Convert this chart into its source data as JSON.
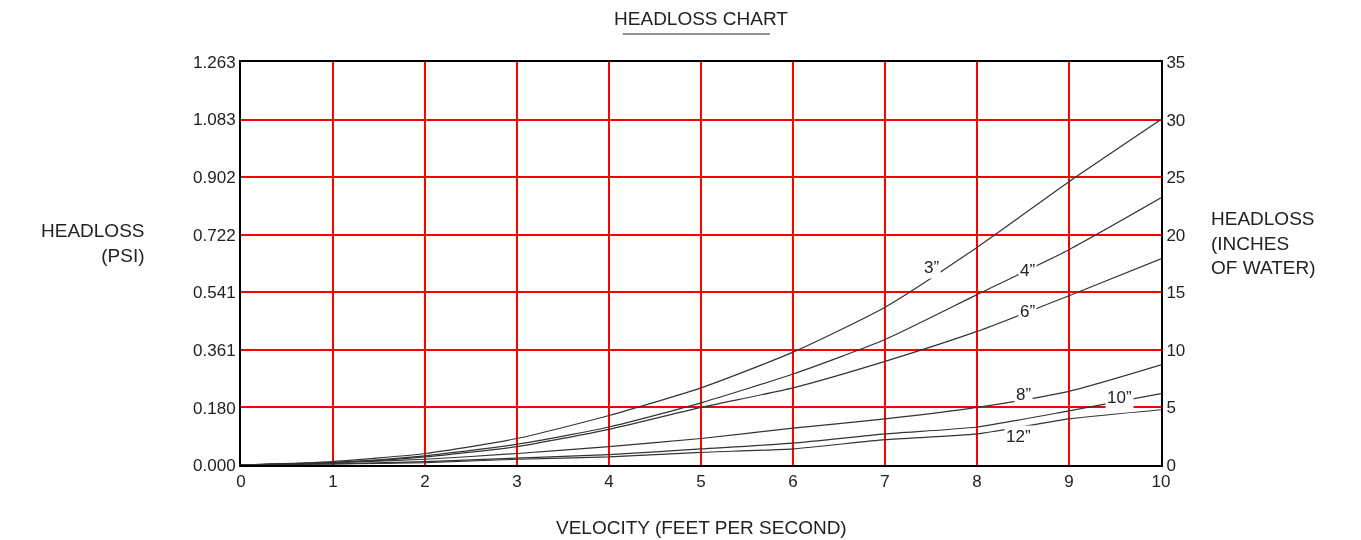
{
  "chart_data": {
    "type": "line",
    "title": "HEADLOSS CHART",
    "xlabel": "VELOCITY (FEET PER SECOND)",
    "ylabel": "HEADLOSS\n(PSI)",
    "y2label": "HEADLOSS\n(INCHES\nOF WATER)",
    "x": [
      0,
      1,
      2,
      3,
      4,
      5,
      6,
      7,
      8,
      9,
      10
    ],
    "series": [
      {
        "color": "#333333",
        "axis": "y2",
        "values": [
          0,
          0.3,
          1.0,
          2.3,
          4.3,
          6.7,
          9.8,
          13.7,
          18.9,
          24.6,
          30
        ]
      },
      {
        "color": "#333333",
        "axis": "y2",
        "values": [
          0,
          0.2,
          0.8,
          1.8,
          3.3,
          5.4,
          7.9,
          10.9,
          14.8,
          18.7,
          23.2
        ]
      },
      {
        "color": "#333333",
        "axis": "y2",
        "values": [
          0,
          0.2,
          0.7,
          1.6,
          3.1,
          5.0,
          6.7,
          9.0,
          11.6,
          14.7,
          17.9
        ]
      },
      {
        "color": "#333333",
        "axis": "y2",
        "values": [
          0,
          0.2,
          0.5,
          1.0,
          1.6,
          2.3,
          3.2,
          4.0,
          5.0,
          6.4,
          8.7
        ]
      },
      {
        "color": "#333333",
        "axis": "y2",
        "values": [
          0,
          0.1,
          0.3,
          0.6,
          0.9,
          1.4,
          1.9,
          2.7,
          3.3,
          4.7,
          6.2
        ]
      },
      {
        "color": "#333333",
        "axis": "y2",
        "values": [
          0,
          0.1,
          0.2,
          0.5,
          0.7,
          1.1,
          1.4,
          2.2,
          2.7,
          4.0,
          4.8
        ]
      }
    ],
    "annotations": [
      {
        "text": "3”",
        "x": 7.5,
        "y": 0.62
      },
      {
        "text": "4”",
        "x": 8.55,
        "y": 0.61
      },
      {
        "text": "6”",
        "x": 8.55,
        "y": 0.48
      },
      {
        "text": "8”",
        "x": 8.5,
        "y": 0.22
      },
      {
        "text": "10”",
        "x": 9.55,
        "y": 0.21
      },
      {
        "text": "12”",
        "x": 8.45,
        "y": 0.09
      }
    ],
    "xlim": [
      0,
      10
    ],
    "xticks": [
      0,
      1,
      2,
      3,
      4,
      5,
      6,
      7,
      8,
      9,
      10
    ],
    "ylim": [
      0,
      1.263
    ],
    "yticks": [
      {
        "value": 0,
        "label": "0.000"
      },
      {
        "value": 0.18,
        "label": "0.180"
      },
      0.361,
      0.541,
      0.722,
      0.902,
      1.083,
      1.263
    ],
    "y2lim": [
      0,
      35
    ],
    "y2ticks": [
      0,
      5,
      10,
      15,
      20,
      25,
      30,
      35
    ],
    "grid": true,
    "marker": "none",
    "line_style": "solid"
  }
}
